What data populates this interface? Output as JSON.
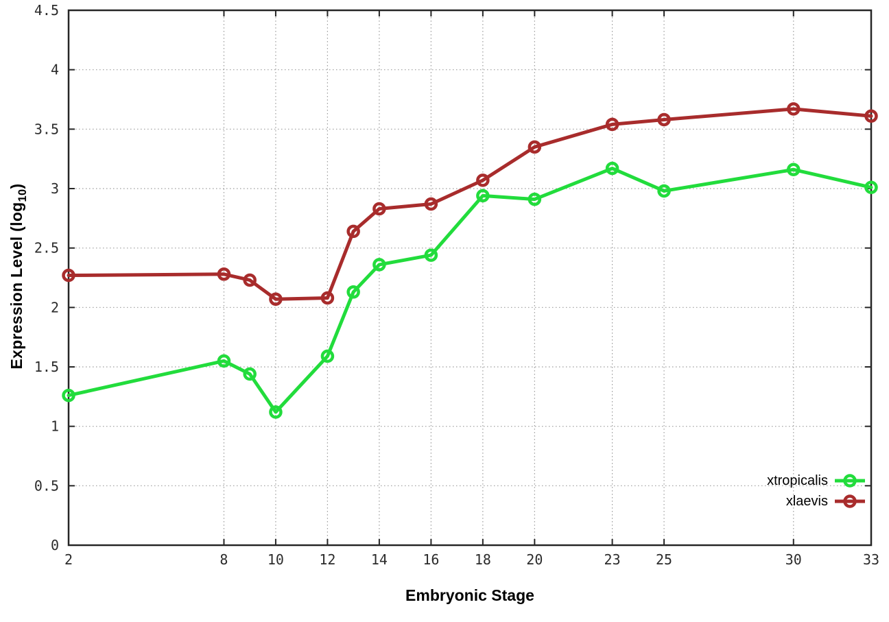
{
  "chart_data": {
    "type": "line",
    "title": "",
    "xlabel": "Embryonic Stage",
    "ylabel": "Expression Level (log10)",
    "ylabel_rich": {
      "prefix": "Expression Level (log",
      "subscript": "10",
      "suffix": ")"
    },
    "xlim": [
      2,
      33
    ],
    "ylim": [
      0,
      4.5
    ],
    "grid": "dotted",
    "legend_position": "inside-bottom-right",
    "background_color": "#ffffff",
    "axis_color": "#262626",
    "tick_label_color": "#2b2b2b",
    "grid_color": "#9a9a9a",
    "x_ticks": [
      {
        "v": 2,
        "label": "2"
      },
      {
        "v": 8,
        "label": "8"
      },
      {
        "v": 10,
        "label": "10"
      },
      {
        "v": 12,
        "label": "12"
      },
      {
        "v": 14,
        "label": "14"
      },
      {
        "v": 16,
        "label": "16"
      },
      {
        "v": 18,
        "label": "18"
      },
      {
        "v": 20,
        "label": "20"
      },
      {
        "v": 23,
        "label": "23"
      },
      {
        "v": 25,
        "label": "25"
      },
      {
        "v": 30,
        "label": "30"
      },
      {
        "v": 33,
        "label": "33"
      }
    ],
    "y_ticks": [
      {
        "v": 0,
        "label": "0"
      },
      {
        "v": 0.5,
        "label": "0.5"
      },
      {
        "v": 1,
        "label": "1"
      },
      {
        "v": 1.5,
        "label": "1.5"
      },
      {
        "v": 2,
        "label": "2"
      },
      {
        "v": 2.5,
        "label": "2.5"
      },
      {
        "v": 3,
        "label": "3"
      },
      {
        "v": 3.5,
        "label": "3.5"
      },
      {
        "v": 4,
        "label": "4"
      },
      {
        "v": 4.5,
        "label": "4.5"
      }
    ],
    "x": [
      2,
      8,
      9,
      10,
      12,
      13,
      14,
      16,
      18,
      20,
      23,
      25,
      30,
      33
    ],
    "series": [
      {
        "name": "xtropicalis",
        "color": "#22dc3c",
        "marker": "open-circle",
        "values": [
          1.26,
          1.55,
          1.44,
          1.12,
          1.59,
          2.13,
          2.36,
          2.44,
          2.94,
          2.91,
          3.17,
          2.98,
          3.16,
          3.01
        ]
      },
      {
        "name": "xlaevis",
        "color": "#a82c2c",
        "marker": "open-circle",
        "values": [
          2.27,
          2.28,
          2.23,
          2.07,
          2.08,
          2.64,
          2.83,
          2.87,
          3.07,
          3.35,
          3.54,
          3.58,
          3.67,
          3.61
        ]
      }
    ]
  }
}
